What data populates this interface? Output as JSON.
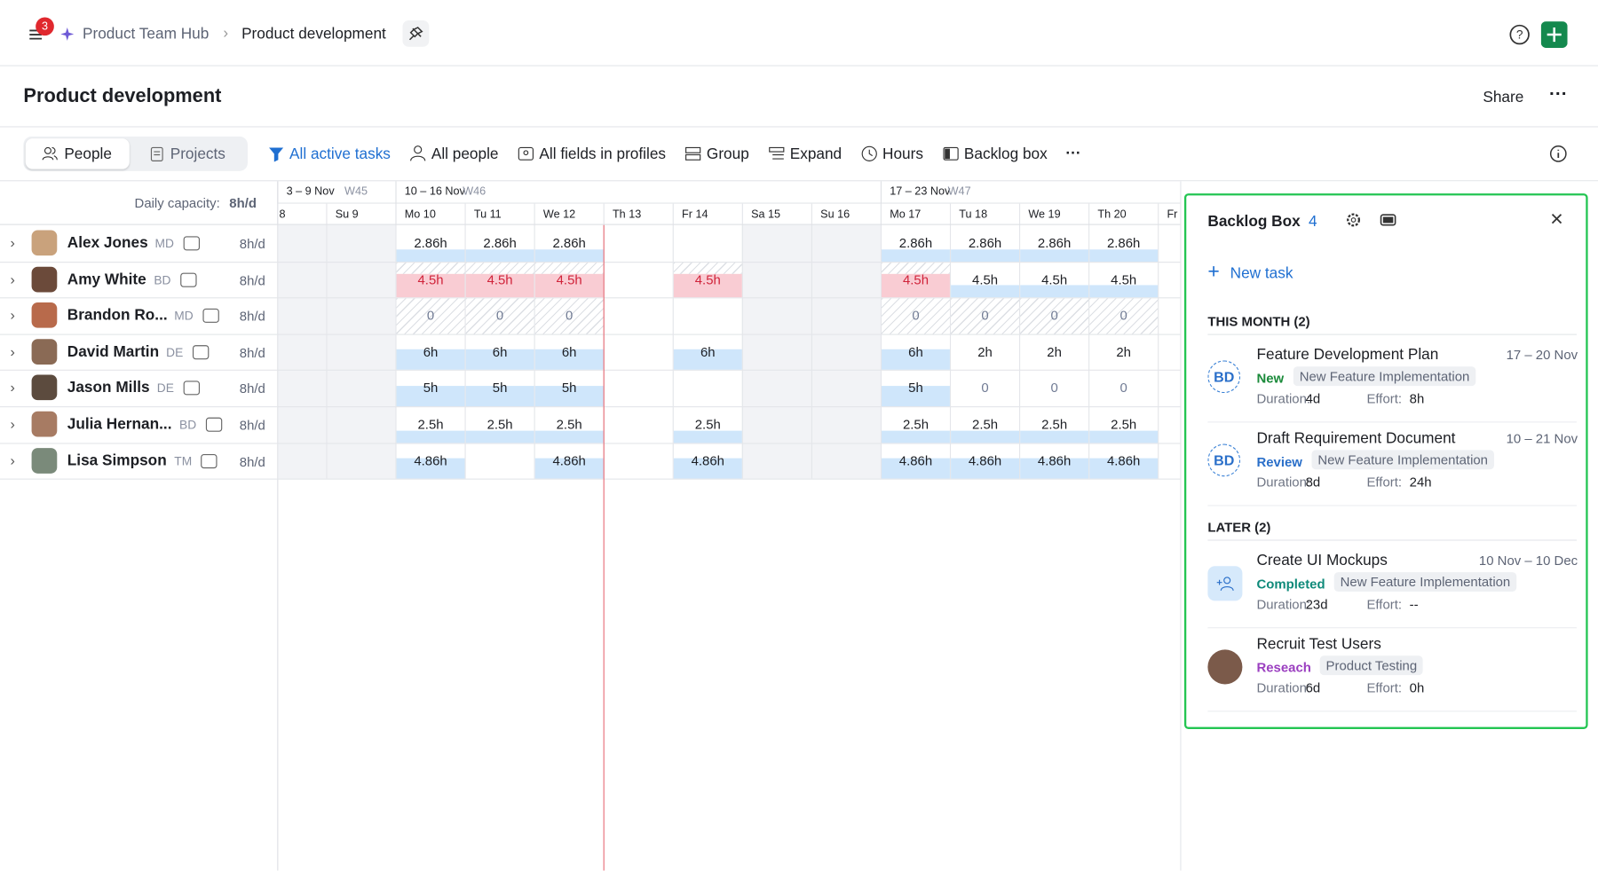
{
  "header": {
    "notification_count": "3",
    "breadcrumb": [
      "Product Team Hub",
      "Product development"
    ]
  },
  "page": {
    "title": "Product development",
    "share": "Share"
  },
  "toolbar": {
    "tabs": [
      "People",
      "Projects"
    ],
    "filters": [
      "All active tasks",
      "All people",
      "All fields in profiles",
      "Group",
      "Expand",
      "Hours",
      "Backlog box"
    ]
  },
  "schedule": {
    "capacity_label": "Daily capacity:",
    "capacity_value": "8h/d",
    "weeks": [
      {
        "range": "3 – 9 Nov",
        "week": "W45"
      },
      {
        "range": "10 – 16 Nov",
        "week": "W46"
      },
      {
        "range": "17 – 23 Nov",
        "week": "W47"
      }
    ],
    "days": [
      "8",
      "Su 9",
      "Mo 10",
      "Tu 11",
      "We 12",
      "Th 13",
      "Fr 14",
      "Sa 15",
      "Su 16",
      "Mo 17",
      "Tu 18",
      "We 19",
      "Th 20",
      "Fr"
    ],
    "people": [
      {
        "name": "Alex Jones",
        "role": "MD",
        "capacity": "8h/d",
        "cells": [
          null,
          null,
          "2.86h",
          "2.86h",
          "2.86h",
          null,
          null,
          null,
          null,
          "2.86h",
          "2.86h",
          "2.86h",
          "2.86h",
          null
        ],
        "states": [
          "n",
          "n",
          "bar",
          "bar",
          "bar",
          "n",
          "n",
          "n",
          "n",
          "bar",
          "bar",
          "bar",
          "bar",
          "n"
        ]
      },
      {
        "name": "Amy White",
        "role": "BD",
        "capacity": "8h/d",
        "cells": [
          null,
          null,
          "4.5h",
          "4.5h",
          "4.5h",
          null,
          "4.5h",
          null,
          null,
          "4.5h",
          "4.5h",
          "4.5h",
          "4.5h",
          null
        ],
        "states": [
          "n",
          "n",
          "over",
          "over",
          "over",
          "n",
          "over",
          "n",
          "n",
          "over",
          "bar",
          "bar",
          "bar",
          "n"
        ]
      },
      {
        "name": "Brandon Ro...",
        "role": "MD",
        "capacity": "8h/d",
        "cells": [
          null,
          null,
          "0",
          "0",
          "0",
          null,
          null,
          null,
          null,
          "0",
          "0",
          "0",
          "0",
          null
        ],
        "states": [
          "n",
          "n",
          "zero",
          "zero",
          "zero",
          "n",
          "n",
          "n",
          "n",
          "zero",
          "zero",
          "zero",
          "zero",
          "n"
        ]
      },
      {
        "name": "David Martin",
        "role": "DE",
        "capacity": "8h/d",
        "cells": [
          null,
          null,
          "6h",
          "6h",
          "6h",
          null,
          "6h",
          null,
          null,
          "6h",
          "2h",
          "2h",
          "2h",
          null
        ],
        "states": [
          "n",
          "n",
          "block",
          "block",
          "block",
          "n",
          "block",
          "n",
          "n",
          "block",
          "plain",
          "plain",
          "plain",
          "n"
        ]
      },
      {
        "name": "Jason Mills",
        "role": "DE",
        "capacity": "8h/d",
        "cells": [
          null,
          null,
          "5h",
          "5h",
          "5h",
          null,
          null,
          null,
          null,
          "5h",
          "0",
          "0",
          "0",
          null
        ],
        "states": [
          "n",
          "n",
          "block",
          "block",
          "block",
          "n",
          "n",
          "n",
          "n",
          "block",
          "plain",
          "plain",
          "plain",
          "n"
        ]
      },
      {
        "name": "Julia Hernan...",
        "role": "BD",
        "capacity": "8h/d",
        "cells": [
          null,
          null,
          "2.5h",
          "2.5h",
          "2.5h",
          null,
          "2.5h",
          null,
          null,
          "2.5h",
          "2.5h",
          "2.5h",
          "2.5h",
          null
        ],
        "states": [
          "n",
          "n",
          "bar",
          "bar",
          "bar",
          "n",
          "bar",
          "n",
          "n",
          "bar",
          "bar",
          "bar",
          "bar",
          "n"
        ]
      },
      {
        "name": "Lisa Simpson",
        "role": "TM",
        "capacity": "8h/d",
        "cells": [
          null,
          null,
          "4.86h",
          null,
          "4.86h",
          null,
          "4.86h",
          null,
          null,
          "4.86h",
          "4.86h",
          "4.86h",
          "4.86h",
          null
        ],
        "states": [
          "n",
          "n",
          "block",
          "n",
          "block",
          "n",
          "block",
          "n",
          "n",
          "block",
          "block",
          "block",
          "block",
          "n"
        ]
      }
    ]
  },
  "backlog": {
    "title": "Backlog Box",
    "count": "4",
    "new_task": "New task",
    "groups": [
      {
        "label": "THIS MONTH (2)",
        "tasks": [
          {
            "name": "Feature Development Plan",
            "dates": "17 – 20 Nov",
            "avatar": "initials",
            "initials": "BD",
            "status": "New",
            "status_color": "#1a8a3a",
            "project": "New Feature Implementation",
            "duration_label": "Duration:",
            "duration": "4d",
            "effort_label": "Effort:",
            "effort": "8h"
          },
          {
            "name": "Draft Requirement Document",
            "dates": "10 – 21 Nov",
            "avatar": "initials",
            "initials": "BD",
            "status": "Review",
            "status_color": "#2a6fc9",
            "project": "New Feature Implementation",
            "duration_label": "Duration:",
            "duration": "8d",
            "effort_label": "Effort:",
            "effort": "24h"
          }
        ]
      },
      {
        "label": "LATER (2)",
        "tasks": [
          {
            "name": "Create UI Mockups",
            "dates": "10 Nov – 10 Dec",
            "avatar": "icon",
            "status": "Completed",
            "status_color": "#0f8a7a",
            "project": "New Feature Implementation",
            "duration_label": "Duration:",
            "duration": "23d",
            "effort_label": "Effort:",
            "effort": "--"
          },
          {
            "name": "Recruit Test Users",
            "avatar": "photo",
            "status": "Reseach",
            "status_color": "#9b3fc0",
            "project": "Product Testing",
            "duration_label": "Duration:",
            "duration": "6d",
            "effort_label": "Effort:",
            "effort": "0h"
          }
        ]
      }
    ]
  }
}
